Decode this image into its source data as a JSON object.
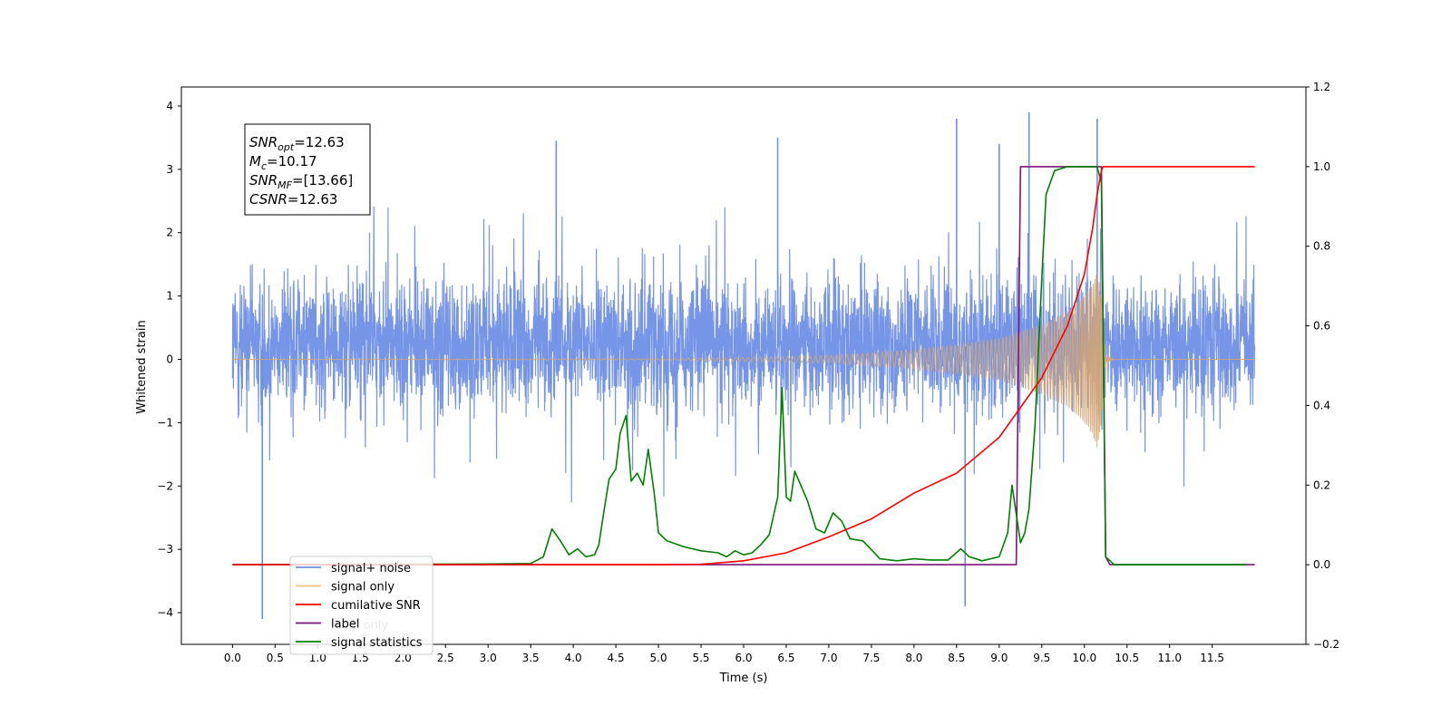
{
  "chart_data": {
    "type": "line",
    "xlabel": "Time (s)",
    "ylabel": "Whitened strain",
    "xlim": [
      -0.6,
      12.6
    ],
    "ylim": [
      -4.5,
      4.3
    ],
    "y2lim": [
      -0.2,
      1.2
    ],
    "xticks": [
      0.0,
      0.5,
      1.0,
      1.5,
      2.0,
      2.5,
      3.0,
      3.5,
      4.0,
      4.5,
      5.0,
      5.5,
      6.0,
      6.5,
      7.0,
      7.5,
      8.0,
      8.5,
      9.0,
      9.5,
      10.0,
      10.5,
      11.0,
      11.5
    ],
    "xtick_labels": [
      "0.0",
      "0.5",
      "1.0",
      "1.5",
      "2.0",
      "2.5",
      "3.0",
      "3.5",
      "4.0",
      "4.5",
      "5.0",
      "5.5",
      "6.0",
      "6.5",
      "7.0",
      "7.5",
      "8.0",
      "8.5",
      "9.0",
      "9.5",
      "10.0",
      "10.5",
      "11.0",
      "11.5"
    ],
    "yticks": [
      -4,
      -3,
      -2,
      -1,
      0,
      1,
      2,
      3,
      4
    ],
    "ytick_labels": [
      "−4",
      "−3",
      "−2",
      "−1",
      "0",
      "1",
      "2",
      "3",
      "4"
    ],
    "y2ticks": [
      -0.2,
      0.0,
      0.2,
      0.4,
      0.6,
      0.8,
      1.0,
      1.2
    ],
    "y2tick_labels": [
      "−0.2",
      "0.0",
      "0.2",
      "0.4",
      "0.6",
      "0.8",
      "1.0",
      "1.2"
    ],
    "grid": false,
    "legend_position": "bottom-left",
    "annotation": [
      {
        "base": "SNR",
        "sub": "opt",
        "value": "=12.63"
      },
      {
        "base": "M",
        "sub": "c",
        "value": "=10.17"
      },
      {
        "base": "SNR",
        "sub": "MF",
        "value": "=[13.66]"
      },
      {
        "base": "CSNR",
        "sub": "",
        "value": "=12.63"
      }
    ],
    "series": [
      {
        "name": "signal+ noise",
        "axis": "left",
        "color": "#6f8fe6",
        "style": "noise",
        "x_range": [
          0.0,
          12.0
        ],
        "typical_envelope": [
          -1.8,
          2.2
        ],
        "notable_peaks": [
          {
            "x": 0.35,
            "y": -4.1
          },
          {
            "x": 3.8,
            "y": 3.45
          },
          {
            "x": 6.4,
            "y": 3.5
          },
          {
            "x": 8.5,
            "y": 3.8
          },
          {
            "x": 8.6,
            "y": -3.9
          },
          {
            "x": 9.0,
            "y": 3.4
          },
          {
            "x": 9.35,
            "y": 3.9
          },
          {
            "x": 10.15,
            "y": 3.8
          }
        ]
      },
      {
        "name": "signal only",
        "axis": "left",
        "color": "#d4a574",
        "style": "chirp",
        "x_range": [
          0.0,
          12.0
        ],
        "merger_time": 10.2,
        "envelope": [
          [
            0.0,
            0.0
          ],
          [
            5.0,
            0.01
          ],
          [
            6.0,
            0.03
          ],
          [
            7.0,
            0.06
          ],
          [
            8.0,
            0.15
          ],
          [
            8.5,
            0.23
          ],
          [
            9.0,
            0.33
          ],
          [
            9.5,
            0.55
          ],
          [
            9.8,
            0.75
          ],
          [
            10.0,
            1.0
          ],
          [
            10.1,
            1.2
          ],
          [
            10.15,
            1.4
          ],
          [
            10.2,
            1.0
          ],
          [
            10.25,
            0.05
          ],
          [
            10.35,
            0.0
          ],
          [
            12.0,
            0.0
          ]
        ]
      },
      {
        "name": "cumilative SNR",
        "axis": "right",
        "color": "#ff0000",
        "x": [
          0.0,
          5.0,
          5.5,
          6.0,
          6.5,
          7.0,
          7.5,
          8.0,
          8.5,
          9.0,
          9.5,
          9.8,
          10.0,
          10.1,
          10.15,
          10.2,
          10.22,
          12.0
        ],
        "values": [
          0.0,
          0.0,
          0.001,
          0.01,
          0.03,
          0.07,
          0.115,
          0.18,
          0.23,
          0.32,
          0.47,
          0.6,
          0.73,
          0.85,
          0.93,
          0.99,
          1.0,
          1.0
        ]
      },
      {
        "name": "label",
        "axis": "right",
        "color": "#7b147b",
        "x": [
          0.0,
          9.2,
          9.25,
          10.2,
          10.25,
          10.3,
          12.0
        ],
        "values": [
          0.0,
          0.0,
          1.0,
          1.0,
          0.02,
          0.0,
          0.0
        ]
      },
      {
        "name": "signal statistics",
        "axis": "right",
        "color": "#008000",
        "x": [
          0.0,
          3.0,
          3.5,
          3.65,
          3.75,
          3.85,
          3.95,
          4.05,
          4.15,
          4.25,
          4.3,
          4.35,
          4.42,
          4.5,
          4.55,
          4.62,
          4.68,
          4.75,
          4.82,
          4.88,
          4.95,
          5.0,
          5.1,
          5.3,
          5.5,
          5.7,
          5.8,
          5.9,
          6.0,
          6.1,
          6.2,
          6.3,
          6.4,
          6.45,
          6.5,
          6.55,
          6.6,
          6.75,
          6.85,
          6.95,
          7.05,
          7.15,
          7.25,
          7.4,
          7.6,
          7.8,
          8.0,
          8.2,
          8.4,
          8.55,
          8.65,
          8.8,
          9.0,
          9.1,
          9.15,
          9.25,
          9.3,
          9.35,
          9.42,
          9.5,
          9.55,
          9.65,
          9.8,
          10.0,
          10.15,
          10.2,
          10.25,
          10.35,
          11.9
        ],
        "values": [
          0.0,
          0.002,
          0.003,
          0.02,
          0.09,
          0.06,
          0.025,
          0.04,
          0.02,
          0.025,
          0.05,
          0.12,
          0.215,
          0.24,
          0.33,
          0.375,
          0.21,
          0.23,
          0.2,
          0.29,
          0.18,
          0.08,
          0.06,
          0.045,
          0.035,
          0.03,
          0.02,
          0.035,
          0.025,
          0.03,
          0.05,
          0.075,
          0.17,
          0.445,
          0.17,
          0.16,
          0.235,
          0.16,
          0.09,
          0.08,
          0.13,
          0.11,
          0.065,
          0.06,
          0.015,
          0.01,
          0.015,
          0.012,
          0.012,
          0.04,
          0.02,
          0.01,
          0.02,
          0.08,
          0.2,
          0.055,
          0.08,
          0.14,
          0.35,
          0.72,
          0.93,
          0.99,
          1.0,
          1.0,
          1.0,
          0.96,
          0.02,
          0.0,
          0.0
        ]
      }
    ],
    "legend": [
      {
        "label": "signal+ noise",
        "color": "#6f8fe6"
      },
      {
        "label": "signal only",
        "color": "#f5c07a"
      },
      {
        "label": "cumilative SNR",
        "color": "#ff0000"
      },
      {
        "label": "label",
        "color": "#7b147b"
      },
      {
        "label": "signal statistics",
        "color": "#008000"
      }
    ],
    "legend_overlapped_text": [
      "label only"
    ]
  }
}
